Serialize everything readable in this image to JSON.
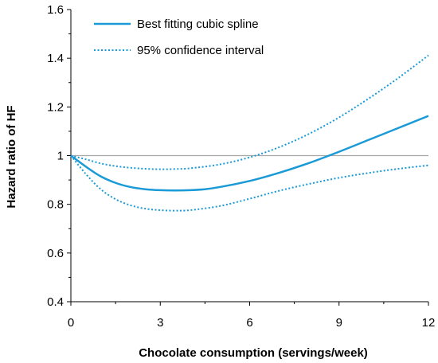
{
  "chart_data": {
    "type": "line",
    "xlabel": "Chocolate consumption (servings/week)",
    "ylabel": "Hazard ratio of HF",
    "xlim": [
      0,
      12
    ],
    "ylim": [
      0.4,
      1.6
    ],
    "x_ticks": [
      0,
      3,
      6,
      9,
      12
    ],
    "y_ticks": [
      0.4,
      0.6,
      0.8,
      1,
      1.2,
      1.4,
      1.6
    ],
    "x_tick_labels": [
      "0",
      "3",
      "6",
      "9",
      "12"
    ],
    "y_tick_labels": [
      "0.4",
      "0.6",
      "0.8",
      "1",
      "1.2",
      "1.4",
      "1.6"
    ],
    "reference_line": {
      "y": 1,
      "color": "#a6a6a6"
    },
    "legend_position": "top-left",
    "series": [
      {
        "name": "Best fitting cubic spline",
        "style": "solid",
        "color": "#1a9ad6",
        "x": [
          0,
          0.5,
          1,
          1.5,
          2,
          2.5,
          3,
          3.5,
          4,
          4.5,
          5,
          6,
          7,
          8,
          9,
          10,
          11,
          12
        ],
        "y": [
          1.0,
          0.955,
          0.915,
          0.888,
          0.871,
          0.862,
          0.858,
          0.857,
          0.858,
          0.862,
          0.871,
          0.896,
          0.93,
          0.97,
          1.016,
          1.065,
          1.114,
          1.163
        ]
      },
      {
        "name": "95% confidence interval",
        "style": "dotted",
        "color": "#1a9ad6",
        "x": [
          0,
          0.5,
          1,
          1.5,
          2,
          2.5,
          3,
          3.5,
          4,
          5,
          6,
          7,
          8,
          9,
          10,
          11,
          12
        ],
        "y": [
          1.0,
          0.985,
          0.968,
          0.957,
          0.95,
          0.946,
          0.944,
          0.945,
          0.948,
          0.964,
          0.993,
          1.035,
          1.09,
          1.157,
          1.235,
          1.32,
          1.412
        ]
      },
      {
        "name": "",
        "style": "dotted",
        "color": "#1a9ad6",
        "x": [
          0,
          0.5,
          1,
          1.5,
          2,
          2.5,
          3,
          3.5,
          4,
          5,
          6,
          7,
          8,
          9,
          10,
          11,
          12
        ],
        "y": [
          1.0,
          0.925,
          0.862,
          0.821,
          0.796,
          0.782,
          0.776,
          0.774,
          0.776,
          0.793,
          0.823,
          0.856,
          0.884,
          0.909,
          0.929,
          0.946,
          0.96
        ]
      }
    ]
  }
}
